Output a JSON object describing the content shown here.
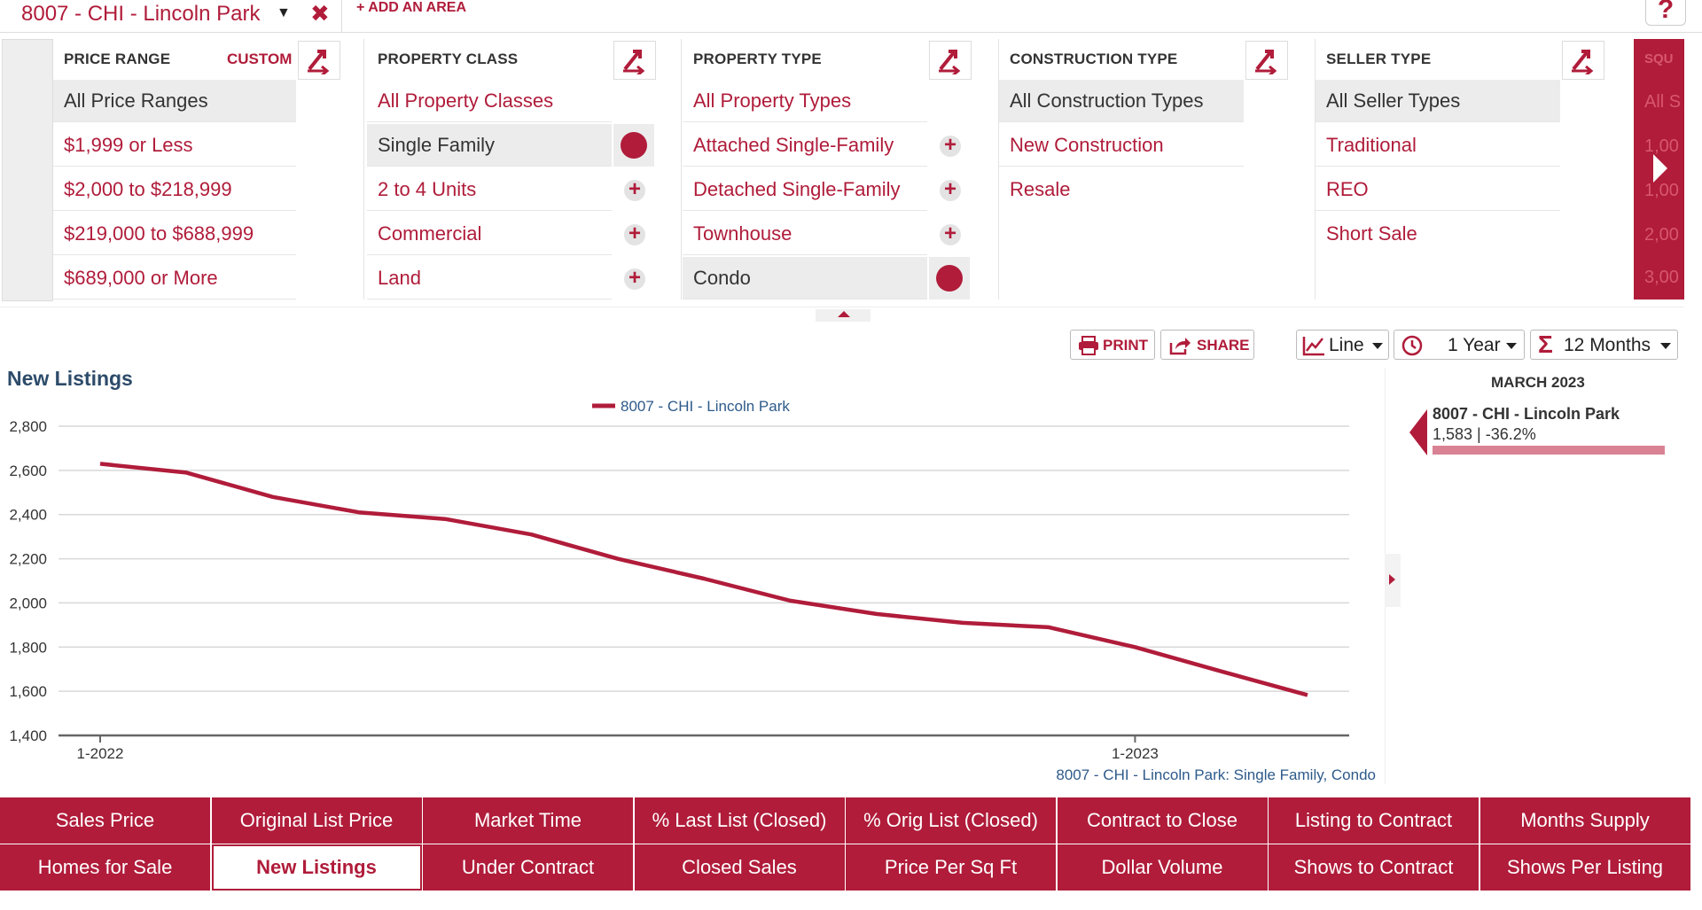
{
  "area": {
    "name": "8007 - CHI - Lincoln Park",
    "close_glyph": "✖",
    "add_label": "+ ADD AN AREA",
    "help_glyph": "?"
  },
  "filters": {
    "price_range": {
      "title": "PRICE RANGE",
      "custom_label": "CUSTOM",
      "options": [
        "All Price Ranges",
        "$1,999 or Less",
        "$2,000 to $218,999",
        "$219,000 to $688,999",
        "$689,000 or More"
      ]
    },
    "property_class": {
      "title": "PROPERTY CLASS",
      "options": [
        "All Property Classes",
        "Single Family",
        "2 to 4 Units",
        "Commercial",
        "Land"
      ]
    },
    "property_type": {
      "title": "PROPERTY TYPE",
      "options": [
        "All Property Types",
        "Attached Single-Family",
        "Detached Single-Family",
        "Townhouse",
        "Condo"
      ]
    },
    "construction_type": {
      "title": "CONSTRUCTION TYPE",
      "options": [
        "All Construction Types",
        "New Construction",
        "Resale"
      ]
    },
    "seller_type": {
      "title": "SELLER TYPE",
      "options": [
        "All Seller Types",
        "Traditional",
        "REO",
        "Short Sale"
      ]
    },
    "partial_column": {
      "title": "SQU",
      "options": [
        "All S",
        "1,00",
        "1,00",
        "2,00",
        "3,00"
      ]
    }
  },
  "toolbar": {
    "print_label": "PRINT",
    "share_label": "SHARE",
    "chart_type": "Line",
    "period": "1 Year",
    "aggregate": "12 Months"
  },
  "chart": {
    "title": "New Listings",
    "footnote": "8007 - CHI - Lincoln Park: Single Family, Condo"
  },
  "chart_data": {
    "type": "line",
    "title": "New Listings",
    "x": [
      "2022-01",
      "2022-02",
      "2022-03",
      "2022-04",
      "2022-05",
      "2022-06",
      "2022-07",
      "2022-08",
      "2022-09",
      "2022-10",
      "2022-11",
      "2022-12",
      "2023-01",
      "2023-02",
      "2023-03"
    ],
    "x_tick_labels": [
      "1-2022",
      "1-2023"
    ],
    "series": [
      {
        "name": "8007 - CHI - Lincoln Park",
        "color": "#b01c3a",
        "values": [
          2630,
          2590,
          2480,
          2410,
          2380,
          2310,
          2200,
          2110,
          2010,
          1950,
          1910,
          1890,
          1800,
          1690,
          1583
        ]
      }
    ],
    "ylim": [
      1400,
      2800
    ],
    "y_ticks": [
      "1,400",
      "1,600",
      "1,800",
      "2,000",
      "2,200",
      "2,400",
      "2,600",
      "2,800"
    ],
    "grid": true,
    "legend": "top-center"
  },
  "side_panel": {
    "month": "MARCH 2023",
    "area": "8007 - CHI - Lincoln Park",
    "value": "1,583 | -36.2%"
  },
  "metric_tabs": {
    "row1": [
      "Sales Price",
      "Original List Price",
      "Market Time",
      "% Last List (Closed)",
      "% Orig List (Closed)",
      "Contract to Close",
      "Listing to Contract",
      "Months Supply"
    ],
    "row2": [
      "Homes for Sale",
      "New Listings",
      "Under Contract",
      "Closed Sales",
      "Price Per Sq Ft",
      "Dollar Volume",
      "Shows to Contract",
      "Shows Per Listing"
    ],
    "active": "New Listings"
  },
  "colors": {
    "accent": "#b01c3a",
    "title_blue": "#2d4b6a"
  }
}
